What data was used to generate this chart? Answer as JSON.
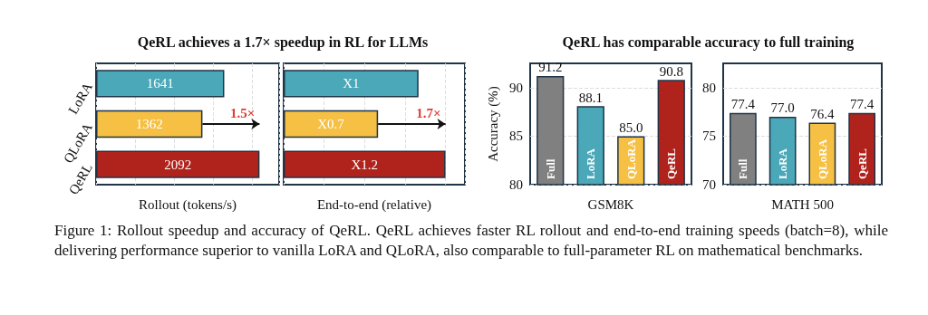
{
  "chart_data": [
    {
      "type": "bar",
      "orientation": "horizontal",
      "title": "QeRL achieves a 1.7× speedup in RL for LLMs",
      "categories": [
        "LoRA",
        "QLoRA",
        "QeRL"
      ],
      "values": [
        1641,
        1362,
        2092
      ],
      "colors": [
        "#4aa8b9",
        "#f5c044",
        "#b0231c"
      ],
      "data_labels": true,
      "xlabel": "Rollout (tokens/s)",
      "tick_labels": "y",
      "grid": "x",
      "annotations": [
        "1.5×"
      ]
    },
    {
      "type": "bar",
      "orientation": "horizontal",
      "categories": [
        null,
        null,
        null
      ],
      "values": [
        1,
        0.7,
        1.2
      ],
      "value_labels": [
        "X1",
        "X0.7",
        "X1.2"
      ],
      "colors": [
        "#4aa8b9",
        "#f5c044",
        "#b0231c"
      ],
      "xlabel": "End-to-end (relative)",
      "tick_labels": false,
      "grid": "x",
      "annotations": [
        "1.7×"
      ]
    },
    {
      "type": "bar",
      "title": "QeRL has comparable accuracy to full training",
      "categories": [
        "Full",
        "LoRA",
        "QLoRA",
        "QeRL"
      ],
      "values": [
        91.2,
        88.1,
        85.0,
        90.8
      ],
      "value_labels": [
        "91.2",
        "88.1",
        "85.0",
        "90.8"
      ],
      "colors": [
        "#808080",
        "#4aa8b9",
        "#f5c044",
        "#b0231c"
      ],
      "xlabel": "GSM8K",
      "ylabel": "Accuracy (%)",
      "ylim": [
        80,
        92.5
      ],
      "yticks": [
        80,
        85,
        90
      ],
      "grid": "y"
    },
    {
      "type": "bar",
      "categories": [
        "Full",
        "LoRA",
        "QLoRA",
        "QeRL"
      ],
      "values": [
        77.4,
        77.0,
        76.4,
        77.4
      ],
      "value_labels": [
        "77.4",
        "77.0",
        "76.4",
        "77.4"
      ],
      "colors": [
        "#808080",
        "#4aa8b9",
        "#f5c044",
        "#b0231c"
      ],
      "xlabel": "MATH 500",
      "ylim": [
        70,
        82.5
      ],
      "yticks": [
        70,
        75,
        80
      ],
      "grid": "y",
      "annotations": [
        "Figure 1: Rollout speedup and accuracy of QeRL. QeRL achieves faster RL rollout and end-to-end training speeds (batch=8), while delivering performance superior to vanilla LoRA and QLoRA, also comparable to full-parameter RL on mathematical benchmarks."
      ]
    }
  ]
}
